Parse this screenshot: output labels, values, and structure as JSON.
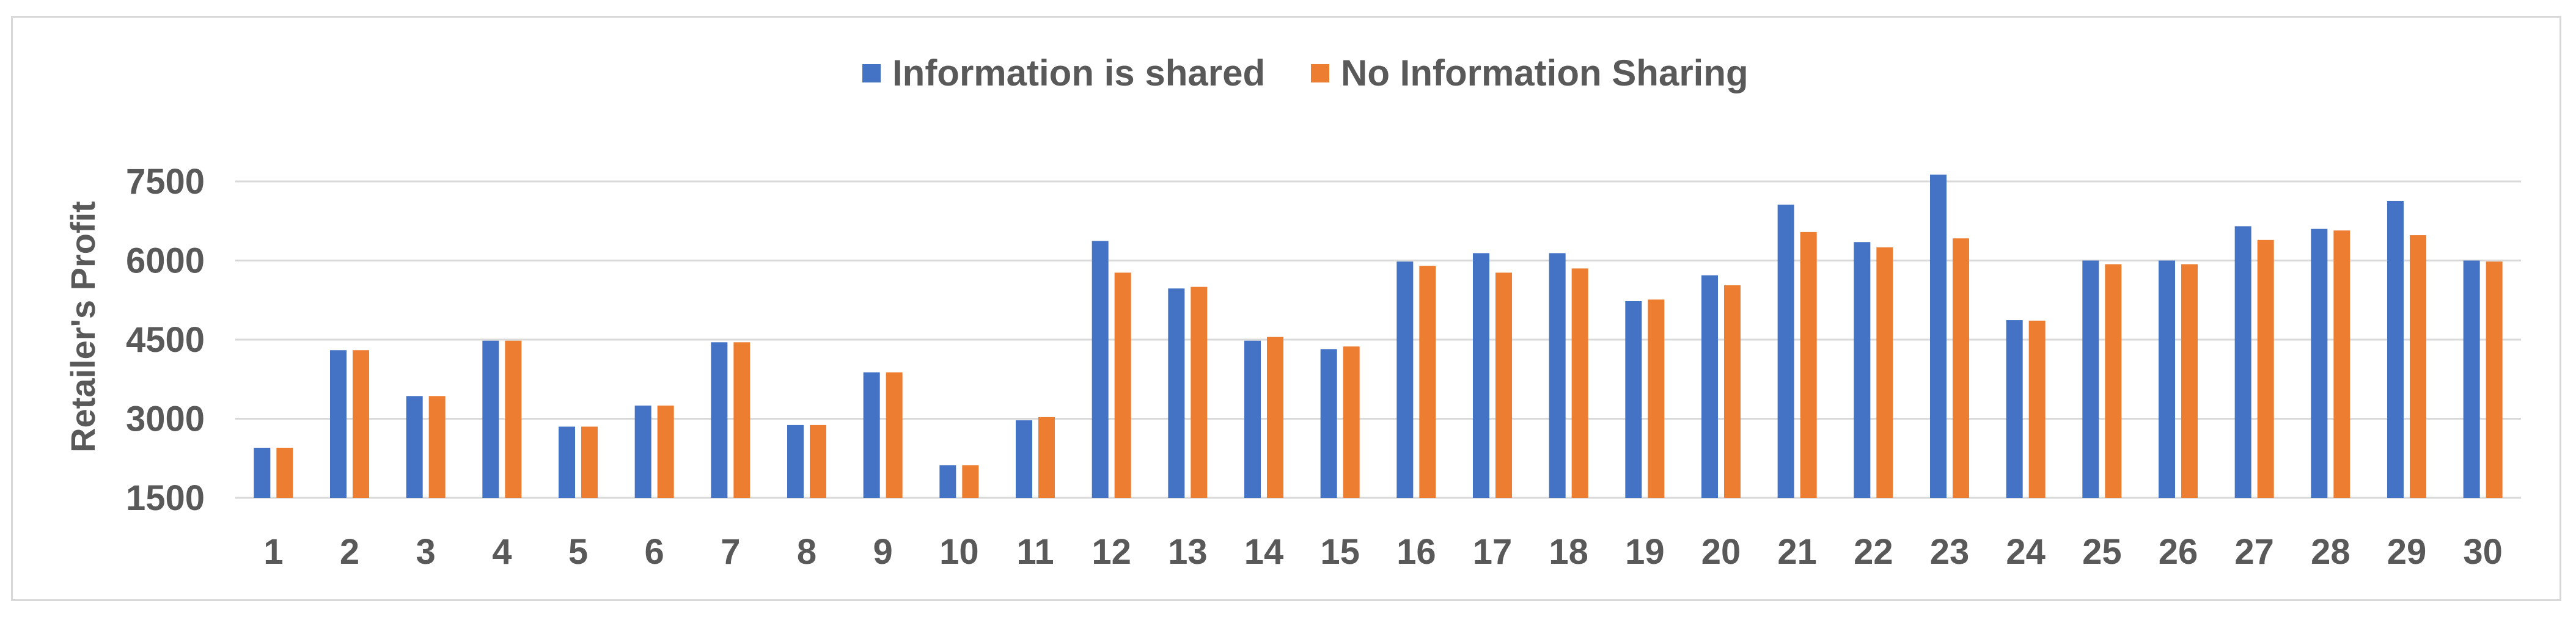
{
  "chart_data": {
    "type": "bar",
    "ylabel": "Retailer's Profit",
    "ylim": [
      1500,
      7500
    ],
    "yticks": [
      1500,
      3000,
      4500,
      6000,
      7500
    ],
    "grid": true,
    "legend_position": "top-center",
    "categories": [
      "1",
      "2",
      "3",
      "4",
      "5",
      "6",
      "7",
      "8",
      "9",
      "10",
      "11",
      "12",
      "13",
      "14",
      "15",
      "16",
      "17",
      "18",
      "19",
      "20",
      "21",
      "22",
      "23",
      "24",
      "25",
      "26",
      "27",
      "28",
      "29",
      "30"
    ],
    "series": [
      {
        "name": "Information is shared",
        "color": "#4472c4",
        "values": [
          2450,
          4300,
          3430,
          4480,
          2850,
          3250,
          4450,
          2880,
          3880,
          2120,
          2970,
          6370,
          5470,
          4480,
          4320,
          5980,
          6140,
          6140,
          5230,
          5720,
          7060,
          6350,
          7630,
          4870,
          6000,
          6000,
          6650,
          6600,
          7130,
          6000
        ]
      },
      {
        "name": "No Information Sharing",
        "color": "#ed7d31",
        "values": [
          2450,
          4300,
          3430,
          4480,
          2850,
          3250,
          4450,
          2880,
          3880,
          2120,
          3030,
          5770,
          5500,
          4550,
          4370,
          5900,
          5770,
          5850,
          5260,
          5530,
          6540,
          6250,
          6420,
          4860,
          5930,
          5930,
          6390,
          6570,
          6480,
          5980
        ]
      }
    ]
  }
}
